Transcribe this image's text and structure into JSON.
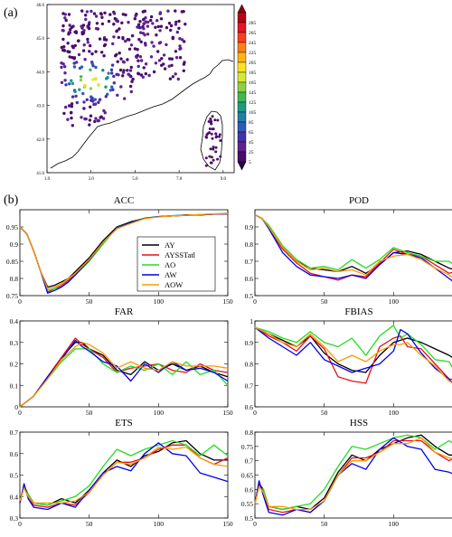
{
  "panels": {
    "a": "(a)",
    "b": "(b)"
  },
  "map": {
    "y_ticks": [
      "46.0",
      "45.0",
      "44.0",
      "43.0",
      "42.0",
      "41.0"
    ],
    "x_ticks": [
      "1.0",
      "3.0",
      "5.0",
      "7.0",
      "9.0"
    ],
    "x_range": [
      1.0,
      9.5
    ],
    "y_range": [
      41.0,
      46.0
    ],
    "colorbar": {
      "labels": [
        "285",
        "265",
        "245",
        "225",
        "205",
        "185",
        "165",
        "145",
        "125",
        "105",
        "85",
        "65",
        "45",
        "25",
        "5"
      ],
      "colors": [
        "#b8001b",
        "#e4142a",
        "#ff3d1f",
        "#ff7d1b",
        "#ffb414",
        "#ffe21e",
        "#d6e833",
        "#90d040",
        "#3fb84e",
        "#1f9a7f",
        "#1f7fa8",
        "#2e5bb8",
        "#4433a8",
        "#5e2292",
        "#4b0d6b"
      ]
    }
  },
  "chart_data": [
    {
      "type": "line",
      "title": "ACC",
      "xlim": [
        0,
        150
      ],
      "ylim": [
        0.75,
        1.0
      ],
      "x": [
        0,
        5,
        10,
        15,
        20,
        25,
        30,
        35,
        40,
        50,
        60,
        70,
        80,
        90,
        100,
        110,
        120,
        130,
        140,
        150
      ],
      "xticks": [
        "0",
        "50",
        "100",
        "150"
      ],
      "yticks": [
        "0.75",
        "0.8",
        "0.85",
        "0.9",
        "0.95"
      ],
      "series": [
        {
          "name": "AY",
          "color": "#000000",
          "values": [
            0.95,
            0.93,
            0.88,
            0.82,
            0.775,
            0.78,
            0.79,
            0.8,
            0.82,
            0.86,
            0.91,
            0.95,
            0.965,
            0.975,
            0.98,
            0.982,
            0.985,
            0.985,
            0.987,
            0.988
          ]
        },
        {
          "name": "AYSSTatl",
          "color": "#e4121a",
          "values": [
            0.95,
            0.93,
            0.88,
            0.82,
            0.76,
            0.77,
            0.78,
            0.795,
            0.815,
            0.855,
            0.905,
            0.945,
            0.962,
            0.975,
            0.98,
            0.982,
            0.984,
            0.985,
            0.987,
            0.988
          ]
        },
        {
          "name": "AO",
          "color": "#22dd22",
          "values": [
            0.95,
            0.93,
            0.88,
            0.82,
            0.765,
            0.77,
            0.775,
            0.79,
            0.81,
            0.85,
            0.9,
            0.948,
            0.962,
            0.976,
            0.98,
            0.983,
            0.984,
            0.986,
            0.988,
            0.99
          ]
        },
        {
          "name": "AW",
          "color": "#0000ee",
          "values": [
            0.95,
            0.93,
            0.88,
            0.82,
            0.757,
            0.765,
            0.775,
            0.79,
            0.81,
            0.853,
            0.905,
            0.947,
            0.962,
            0.975,
            0.98,
            0.982,
            0.984,
            0.985,
            0.987,
            0.988
          ]
        },
        {
          "name": "AOW",
          "color": "#ff9900",
          "values": [
            0.95,
            0.93,
            0.88,
            0.82,
            0.77,
            0.775,
            0.785,
            0.8,
            0.815,
            0.855,
            0.905,
            0.945,
            0.96,
            0.974,
            0.979,
            0.982,
            0.984,
            0.986,
            0.988,
            0.989
          ]
        }
      ],
      "legend": "inside"
    },
    {
      "type": "line",
      "title": "POD",
      "xlim": [
        0,
        150
      ],
      "ylim": [
        0.5,
        1.0
      ],
      "x": [
        0,
        5,
        10,
        15,
        20,
        30,
        40,
        50,
        60,
        70,
        80,
        90,
        100,
        110,
        120,
        130,
        140,
        150
      ],
      "xticks": [
        "0",
        "50",
        "100",
        "150"
      ],
      "yticks": [
        "0.5",
        "0.6",
        "0.7",
        "0.8",
        "0.9"
      ],
      "series": [
        {
          "name": "AY",
          "values": [
            0.97,
            0.95,
            0.9,
            0.84,
            0.78,
            0.7,
            0.66,
            0.65,
            0.64,
            0.67,
            0.63,
            0.68,
            0.75,
            0.76,
            0.74,
            0.7,
            0.66,
            0.64
          ]
        },
        {
          "name": "AYSSTatl",
          "values": [
            0.97,
            0.95,
            0.9,
            0.83,
            0.77,
            0.69,
            0.63,
            0.61,
            0.59,
            0.62,
            0.61,
            0.69,
            0.77,
            0.74,
            0.73,
            0.68,
            0.63,
            0.65
          ]
        },
        {
          "name": "AO",
          "values": [
            0.97,
            0.95,
            0.91,
            0.85,
            0.79,
            0.71,
            0.66,
            0.67,
            0.65,
            0.71,
            0.66,
            0.71,
            0.78,
            0.75,
            0.73,
            0.7,
            0.7,
            0.64
          ]
        },
        {
          "name": "AW",
          "values": [
            0.97,
            0.95,
            0.89,
            0.82,
            0.75,
            0.67,
            0.62,
            0.61,
            0.6,
            0.62,
            0.6,
            0.68,
            0.75,
            0.74,
            0.72,
            0.66,
            0.6,
            0.54
          ]
        },
        {
          "name": "AOW",
          "values": [
            0.97,
            0.95,
            0.9,
            0.84,
            0.78,
            0.7,
            0.65,
            0.66,
            0.64,
            0.65,
            0.62,
            0.7,
            0.73,
            0.74,
            0.71,
            0.66,
            0.62,
            0.56
          ]
        }
      ]
    },
    {
      "type": "line",
      "title": "FAR",
      "xlim": [
        0,
        150
      ],
      "ylim": [
        0,
        0.4
      ],
      "x": [
        0,
        10,
        20,
        30,
        40,
        45,
        50,
        60,
        70,
        80,
        90,
        100,
        110,
        120,
        130,
        140,
        150
      ],
      "xticks": [
        "0",
        "50",
        "100",
        "150"
      ],
      "yticks": [
        "0",
        "0.1",
        "0.2",
        "0.3",
        "0.4"
      ],
      "series": [
        {
          "name": "AY",
          "values": [
            0.0,
            0.05,
            0.14,
            0.23,
            0.3,
            0.3,
            0.27,
            0.24,
            0.17,
            0.15,
            0.21,
            0.17,
            0.2,
            0.17,
            0.19,
            0.16,
            0.14
          ]
        },
        {
          "name": "AYSSTatl",
          "values": [
            0.0,
            0.05,
            0.14,
            0.23,
            0.32,
            0.29,
            0.27,
            0.23,
            0.16,
            0.18,
            0.19,
            0.2,
            0.17,
            0.16,
            0.2,
            0.17,
            0.16
          ]
        },
        {
          "name": "AO",
          "values": [
            0.0,
            0.05,
            0.13,
            0.21,
            0.27,
            0.27,
            0.27,
            0.2,
            0.16,
            0.19,
            0.17,
            0.2,
            0.15,
            0.21,
            0.15,
            0.17,
            0.1
          ]
        },
        {
          "name": "AW",
          "values": [
            0.0,
            0.05,
            0.14,
            0.22,
            0.31,
            0.28,
            0.26,
            0.21,
            0.19,
            0.12,
            0.2,
            0.16,
            0.21,
            0.17,
            0.18,
            0.16,
            0.12
          ]
        },
        {
          "name": "AOW",
          "values": [
            0.0,
            0.05,
            0.13,
            0.22,
            0.28,
            0.3,
            0.29,
            0.25,
            0.18,
            0.21,
            0.18,
            0.17,
            0.21,
            0.19,
            0.19,
            0.19,
            0.18
          ]
        }
      ]
    },
    {
      "type": "line",
      "title": "FBIAS",
      "xlim": [
        0,
        150
      ],
      "ylim": [
        0.6,
        1.0
      ],
      "x": [
        0,
        10,
        20,
        30,
        40,
        50,
        60,
        70,
        80,
        90,
        100,
        105,
        110,
        120,
        130,
        140,
        150
      ],
      "xticks": [
        "0",
        "50",
        "100",
        "150"
      ],
      "yticks": [
        "0.6",
        "0.7",
        "0.8",
        "0.9",
        "1"
      ],
      "series": [
        {
          "name": "AY",
          "values": [
            0.97,
            0.94,
            0.91,
            0.88,
            0.93,
            0.85,
            0.8,
            0.77,
            0.76,
            0.84,
            0.9,
            0.91,
            0.92,
            0.9,
            0.87,
            0.84,
            0.8
          ]
        },
        {
          "name": "AYSSTatl",
          "values": [
            0.97,
            0.93,
            0.9,
            0.86,
            0.93,
            0.87,
            0.74,
            0.72,
            0.71,
            0.88,
            0.92,
            0.93,
            0.88,
            0.87,
            0.8,
            0.73,
            0.72
          ]
        },
        {
          "name": "AO",
          "values": [
            0.97,
            0.95,
            0.92,
            0.9,
            0.95,
            0.9,
            0.88,
            0.92,
            0.84,
            0.93,
            0.98,
            0.92,
            0.94,
            0.89,
            0.82,
            0.81,
            0.7
          ]
        },
        {
          "name": "AW",
          "values": [
            0.97,
            0.92,
            0.88,
            0.84,
            0.9,
            0.82,
            0.79,
            0.76,
            0.78,
            0.8,
            0.86,
            0.96,
            0.94,
            0.85,
            0.78,
            0.73,
            0.65
          ]
        },
        {
          "name": "AOW",
          "values": [
            0.97,
            0.94,
            0.9,
            0.88,
            0.94,
            0.88,
            0.81,
            0.84,
            0.81,
            0.86,
            0.89,
            0.89,
            0.9,
            0.84,
            0.79,
            0.72,
            0.69
          ]
        }
      ]
    },
    {
      "type": "line",
      "title": "ETS",
      "xlim": [
        0,
        150
      ],
      "ylim": [
        0.3,
        0.7
      ],
      "x": [
        0,
        3,
        6,
        10,
        20,
        30,
        40,
        50,
        60,
        70,
        80,
        90,
        100,
        110,
        120,
        130,
        140,
        150
      ],
      "xticks": [
        "0",
        "50",
        "100",
        "150"
      ],
      "yticks": [
        "0.3",
        "0.4",
        "0.5",
        "0.6",
        "0.7"
      ],
      "series": [
        {
          "name": "AY",
          "values": [
            0.38,
            0.45,
            0.41,
            0.37,
            0.36,
            0.39,
            0.37,
            0.43,
            0.51,
            0.57,
            0.54,
            0.59,
            0.61,
            0.65,
            0.66,
            0.6,
            0.57,
            0.57
          ]
        },
        {
          "name": "AYSSTatl",
          "values": [
            0.37,
            0.45,
            0.4,
            0.36,
            0.35,
            0.37,
            0.36,
            0.42,
            0.5,
            0.56,
            0.56,
            0.58,
            0.62,
            0.64,
            0.64,
            0.58,
            0.55,
            0.58
          ]
        },
        {
          "name": "AO",
          "values": [
            0.38,
            0.44,
            0.41,
            0.37,
            0.36,
            0.38,
            0.4,
            0.45,
            0.54,
            0.62,
            0.59,
            0.62,
            0.64,
            0.66,
            0.64,
            0.59,
            0.64,
            0.59
          ]
        },
        {
          "name": "AW",
          "values": [
            0.37,
            0.46,
            0.39,
            0.35,
            0.34,
            0.37,
            0.35,
            0.43,
            0.51,
            0.54,
            0.52,
            0.6,
            0.65,
            0.6,
            0.59,
            0.51,
            0.49,
            0.47
          ]
        },
        {
          "name": "AOW",
          "values": [
            0.38,
            0.44,
            0.4,
            0.37,
            0.37,
            0.37,
            0.38,
            0.42,
            0.5,
            0.56,
            0.55,
            0.58,
            0.63,
            0.62,
            0.63,
            0.58,
            0.55,
            0.54
          ]
        }
      ]
    },
    {
      "type": "line",
      "title": "HSS",
      "xlim": [
        0,
        150
      ],
      "ylim": [
        0.5,
        0.8
      ],
      "x": [
        0,
        3,
        6,
        10,
        20,
        30,
        40,
        50,
        60,
        70,
        80,
        90,
        100,
        110,
        120,
        130,
        140,
        150
      ],
      "xticks": [
        "0",
        "50",
        "100",
        "150"
      ],
      "yticks": [
        "0.5",
        "0.55",
        "0.6",
        "0.65",
        "0.7",
        "0.75",
        "0.8"
      ],
      "series": [
        {
          "name": "AY",
          "values": [
            0.55,
            0.62,
            0.6,
            0.54,
            0.53,
            0.54,
            0.53,
            0.57,
            0.66,
            0.72,
            0.7,
            0.74,
            0.76,
            0.78,
            0.79,
            0.75,
            0.72,
            0.72
          ]
        },
        {
          "name": "AYSSTatl",
          "values": [
            0.55,
            0.62,
            0.59,
            0.53,
            0.52,
            0.53,
            0.52,
            0.56,
            0.65,
            0.71,
            0.71,
            0.73,
            0.77,
            0.77,
            0.77,
            0.73,
            0.7,
            0.73
          ]
        },
        {
          "name": "AO",
          "values": [
            0.55,
            0.61,
            0.6,
            0.54,
            0.53,
            0.54,
            0.55,
            0.6,
            0.68,
            0.75,
            0.74,
            0.76,
            0.78,
            0.79,
            0.78,
            0.74,
            0.77,
            0.74
          ]
        },
        {
          "name": "AW",
          "values": [
            0.55,
            0.63,
            0.58,
            0.52,
            0.51,
            0.53,
            0.52,
            0.56,
            0.65,
            0.69,
            0.67,
            0.74,
            0.78,
            0.75,
            0.74,
            0.67,
            0.66,
            0.64
          ]
        },
        {
          "name": "AOW",
          "values": [
            0.55,
            0.61,
            0.59,
            0.54,
            0.54,
            0.53,
            0.53,
            0.56,
            0.65,
            0.7,
            0.7,
            0.73,
            0.76,
            0.76,
            0.78,
            0.73,
            0.71,
            0.7
          ]
        }
      ]
    }
  ]
}
